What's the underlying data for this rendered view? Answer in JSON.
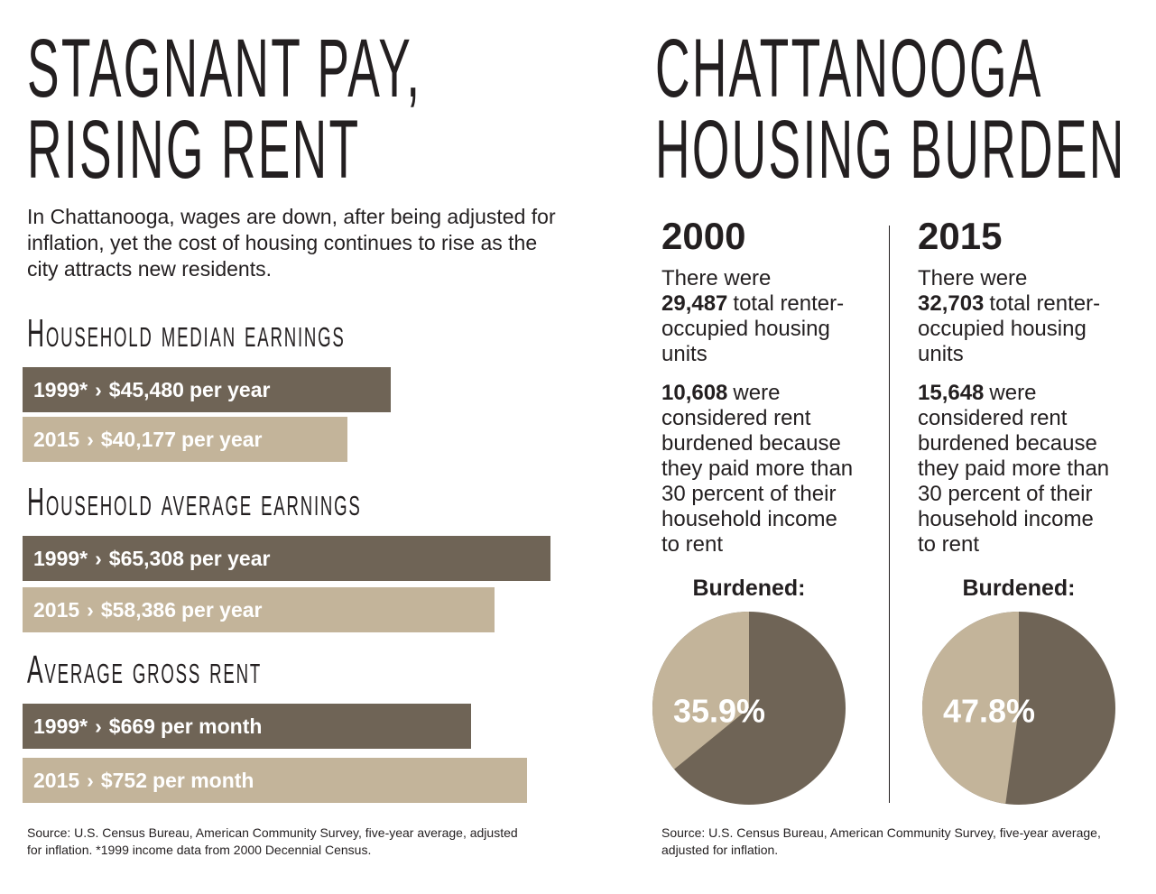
{
  "left": {
    "title": [
      "STAGNANT PAY,",
      "RISING RENT"
    ],
    "intro": "In Chattanooga, wages are down, after being adjusted for inflation, yet the cost of housing continues to rise as the city attracts new residents.",
    "source": "Source: U.S. Census Bureau, American Community Survey, five-year average, adjusted for inflation. *1999 income data from 2000 Decennial Census."
  },
  "right": {
    "title": [
      "CHATTANOOGA",
      "HOUSING BURDEN"
    ],
    "source": "Source: U.S. Census Bureau, American Community Survey, five-year average, adjusted for inflation."
  },
  "chart_data": [
    {
      "type": "bar",
      "title": "Household median earnings",
      "categories": [
        "1999*",
        "2015"
      ],
      "values": [
        45480,
        40177
      ],
      "value_labels": [
        "$45,480",
        "$40,177"
      ],
      "unit": "per year",
      "separator": "›",
      "colors": [
        "#6f6456",
        "#c3b49a"
      ]
    },
    {
      "type": "bar",
      "title": "Household average earnings",
      "categories": [
        "1999*",
        "2015"
      ],
      "values": [
        65308,
        58386
      ],
      "value_labels": [
        "$65,308",
        "$58,386"
      ],
      "unit": "per year",
      "separator": "›",
      "colors": [
        "#6f6456",
        "#c3b49a"
      ]
    },
    {
      "type": "bar",
      "title": "Average gross rent",
      "categories": [
        "1999*",
        "2015"
      ],
      "values": [
        669,
        752
      ],
      "value_labels": [
        "$669",
        "$752"
      ],
      "unit": "per month",
      "separator": "›",
      "colors": [
        "#6f6456",
        "#c3b49a"
      ]
    },
    {
      "type": "pie",
      "year": "2000",
      "intro": "There were",
      "units": "29,487",
      "units_text": "total renter-occupied housing units",
      "burdened": "10,608",
      "burdened_text": "were considered rent burdened because they paid more than 30 percent of their household income to rent",
      "title": "Burdened:",
      "values": [
        35.9
      ],
      "value_labels": [
        "35.9%"
      ],
      "colors": [
        "#c3b49a"
      ],
      "rest_color": "#6f6456"
    },
    {
      "type": "pie",
      "year": "2015",
      "intro": "There were",
      "units": "32,703",
      "units_text": "total renter-occupied housing units",
      "burdened": "15,648",
      "burdened_text": "were considered rent burdened because they paid more than 30 percent of their household income to rent",
      "title": "Burdened:",
      "values": [
        47.8
      ],
      "value_labels": [
        "47.8%"
      ],
      "colors": [
        "#c3b49a"
      ],
      "rest_color": "#6f6456"
    }
  ]
}
